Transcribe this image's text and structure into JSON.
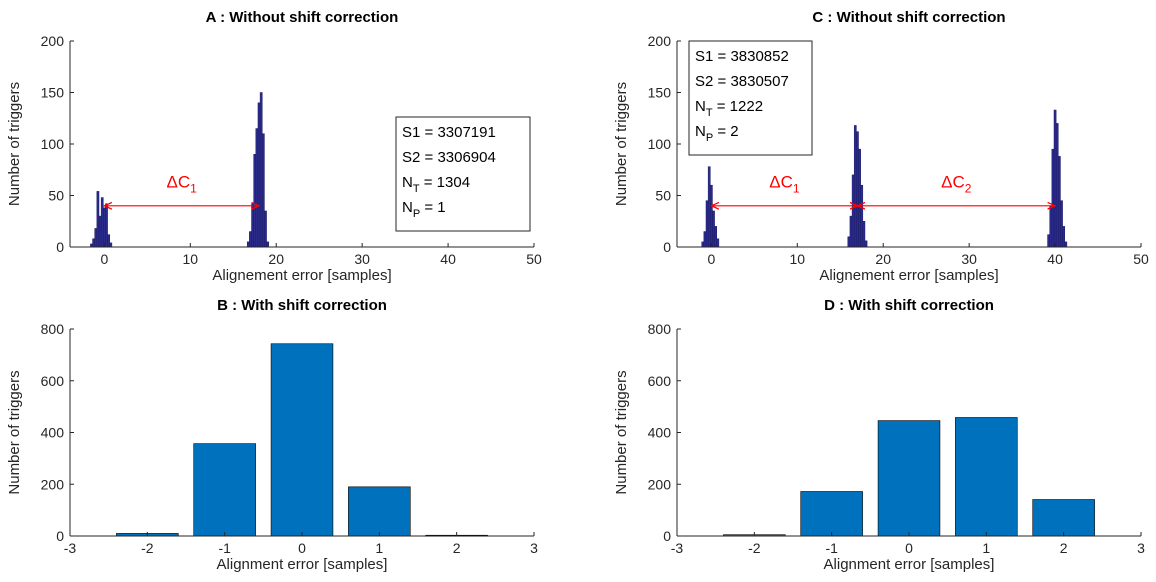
{
  "chart_data": [
    {
      "id": "A",
      "type": "bar",
      "title": "A : Without shift correction",
      "xlabel": "Alignement error [samples]",
      "ylabel": "Number of triggers",
      "xlim": [
        -4,
        50
      ],
      "ylim": [
        0,
        200
      ],
      "xticks": [
        0,
        10,
        20,
        30,
        40,
        50
      ],
      "yticks": [
        0,
        50,
        100,
        150,
        200
      ],
      "bar_width": 0.25,
      "bar_color": "#2b2b8c",
      "series": [
        {
          "x": [
            -1.5,
            -1.25,
            -1.0,
            -0.75,
            -0.5,
            -0.25,
            0.0,
            0.25,
            0.5,
            0.75,
            16.75,
            17.0,
            17.25,
            17.5,
            17.75,
            18.0,
            18.25,
            18.5,
            18.75,
            19.0
          ],
          "values": [
            3,
            8,
            18,
            54,
            30,
            48,
            38,
            42,
            12,
            4,
            5,
            15,
            42,
            90,
            115,
            140,
            150,
            110,
            35,
            5
          ]
        }
      ],
      "annotations": {
        "arrow": [
          {
            "from": 0,
            "to": 18,
            "y": 40,
            "label": "ΔC",
            "sub": "1",
            "label_x": 9,
            "label_y": 58
          }
        ],
        "textbox": {
          "position": "right",
          "lines": [
            {
              "text": "S1 = 3307191"
            },
            {
              "text": "S2 = 3306904"
            },
            {
              "text": "N",
              "sub": "T",
              "rest": " = 1304"
            },
            {
              "text": "N",
              "sub": "P",
              "rest": " = 1"
            }
          ]
        }
      }
    },
    {
      "id": "B",
      "type": "bar",
      "title": "B : With shift correction",
      "xlabel": "Alignment error [samples]",
      "ylabel": "Number of triggers",
      "xlim": [
        -3,
        3
      ],
      "ylim": [
        0,
        800
      ],
      "xticks": [
        -3,
        -2,
        -1,
        0,
        1,
        2,
        3
      ],
      "yticks": [
        0,
        200,
        400,
        600,
        800
      ],
      "bar_width": 0.8,
      "bar_color": "#0072bd",
      "categories": [
        -2,
        -1,
        0,
        1,
        2
      ],
      "values": [
        10,
        357,
        743,
        190,
        3
      ]
    },
    {
      "id": "C",
      "type": "bar",
      "title": "C : Without shift correction",
      "xlabel": "Alignement error [samples]",
      "ylabel": "Number of triggers",
      "xlim": [
        -4,
        50
      ],
      "ylim": [
        0,
        200
      ],
      "xticks": [
        0,
        10,
        20,
        30,
        40,
        50
      ],
      "yticks": [
        0,
        50,
        100,
        150,
        200
      ],
      "bar_width": 0.25,
      "bar_color": "#2b2b8c",
      "series": [
        {
          "x": [
            -1.0,
            -0.75,
            -0.5,
            -0.25,
            0.0,
            0.25,
            0.5,
            0.75,
            16.0,
            16.25,
            16.5,
            16.75,
            17.0,
            17.25,
            17.5,
            17.75,
            18.0,
            39.25,
            39.5,
            39.75,
            40.0,
            40.25,
            40.5,
            40.75,
            41.0,
            41.25
          ],
          "values": [
            5,
            15,
            45,
            78,
            60,
            35,
            20,
            8,
            10,
            30,
            70,
            118,
            112,
            95,
            60,
            25,
            6,
            12,
            40,
            95,
            133,
            120,
            88,
            45,
            20,
            5
          ]
        }
      ],
      "annotations": {
        "arrow": [
          {
            "from": 0,
            "to": 17,
            "y": 40,
            "label": "ΔC",
            "sub": "1",
            "label_x": 8.5,
            "label_y": 58
          },
          {
            "from": 17,
            "to": 40,
            "y": 40,
            "label": "ΔC",
            "sub": "2",
            "label_x": 28.5,
            "label_y": 58
          }
        ],
        "textbox": {
          "position": "left",
          "lines": [
            {
              "text": "S1 = 3830852"
            },
            {
              "text": "S2 = 3830507"
            },
            {
              "text": "N",
              "sub": "T",
              "rest": " = 1222"
            },
            {
              "text": "N",
              "sub": "P",
              "rest": " = 2"
            }
          ]
        }
      }
    },
    {
      "id": "D",
      "type": "bar",
      "title": "D : With shift correction",
      "xlabel": "Alignment error [samples]",
      "ylabel": "Number of triggers",
      "xlim": [
        -3,
        3
      ],
      "ylim": [
        0,
        800
      ],
      "xticks": [
        -3,
        -2,
        -1,
        0,
        1,
        2,
        3
      ],
      "yticks": [
        0,
        200,
        400,
        600,
        800
      ],
      "bar_width": 0.8,
      "bar_color": "#0072bd",
      "categories": [
        -2,
        -1,
        0,
        1,
        2
      ],
      "values": [
        5,
        172,
        446,
        458,
        141
      ]
    }
  ]
}
